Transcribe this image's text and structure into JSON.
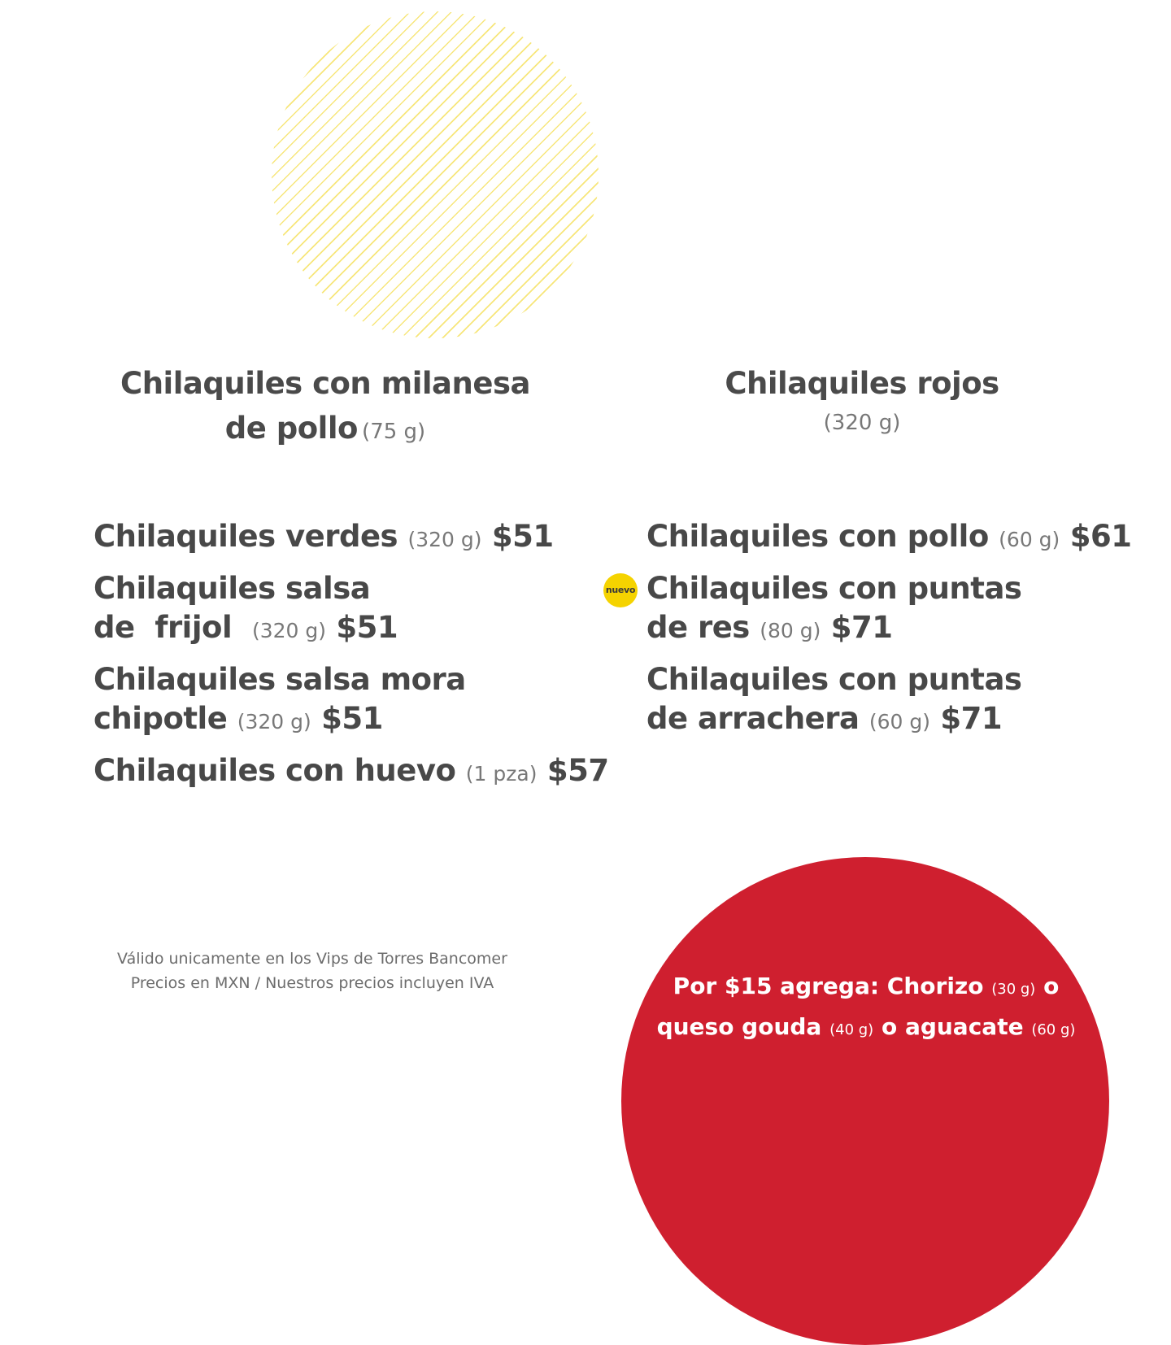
{
  "feature_left": {
    "name": "Chilaquiles con milanesa",
    "name2": "de pollo",
    "weight": "(75 g)"
  },
  "feature_right": {
    "name": "Chilaquiles rojos",
    "weight": "(320 g)"
  },
  "items": [
    {
      "name": "Chilaquiles verdes",
      "weight": "(320 g)",
      "price": "$51"
    },
    {
      "name": "Chilaquiles salsa",
      "name2": "de  frijol ",
      "weight": "(320 g)",
      "price": "$51"
    },
    {
      "name": "Chilaquiles salsa mora",
      "name2": "chipotle",
      "weight": "(320 g)",
      "price": "$51"
    },
    {
      "name": "Chilaquiles con huevo",
      "weight": "(1 pza)",
      "price": "$57"
    },
    {
      "name": "Chilaquiles con pollo",
      "weight": "(60 g)",
      "price": "$61"
    },
    {
      "name": "Chilaquiles con puntas",
      "name2": "de res",
      "weight": "(80 g)",
      "price": "$71",
      "badge": "nuevo"
    },
    {
      "name": "Chilaquiles con puntas",
      "name2": "de arrachera",
      "weight": "(60 g)",
      "price": "$71"
    }
  ],
  "legal": {
    "line1": "Válido unicamente en los Vips de Torres Bancomer",
    "line2": "Precios en MXN / Nuestros precios incluyen IVA"
  },
  "addon": {
    "part1": "Por $15 agrega: Chorizo",
    "w1": "(30 g)",
    "o1": "o",
    "part2": "queso gouda",
    "w2": "(40 g)",
    "o2": "o aguacate",
    "w3": "(60 g)"
  },
  "colors": {
    "hatch": "#f7e67a",
    "badge": "#f5d300",
    "addon_bg": "#cf1f2f"
  }
}
